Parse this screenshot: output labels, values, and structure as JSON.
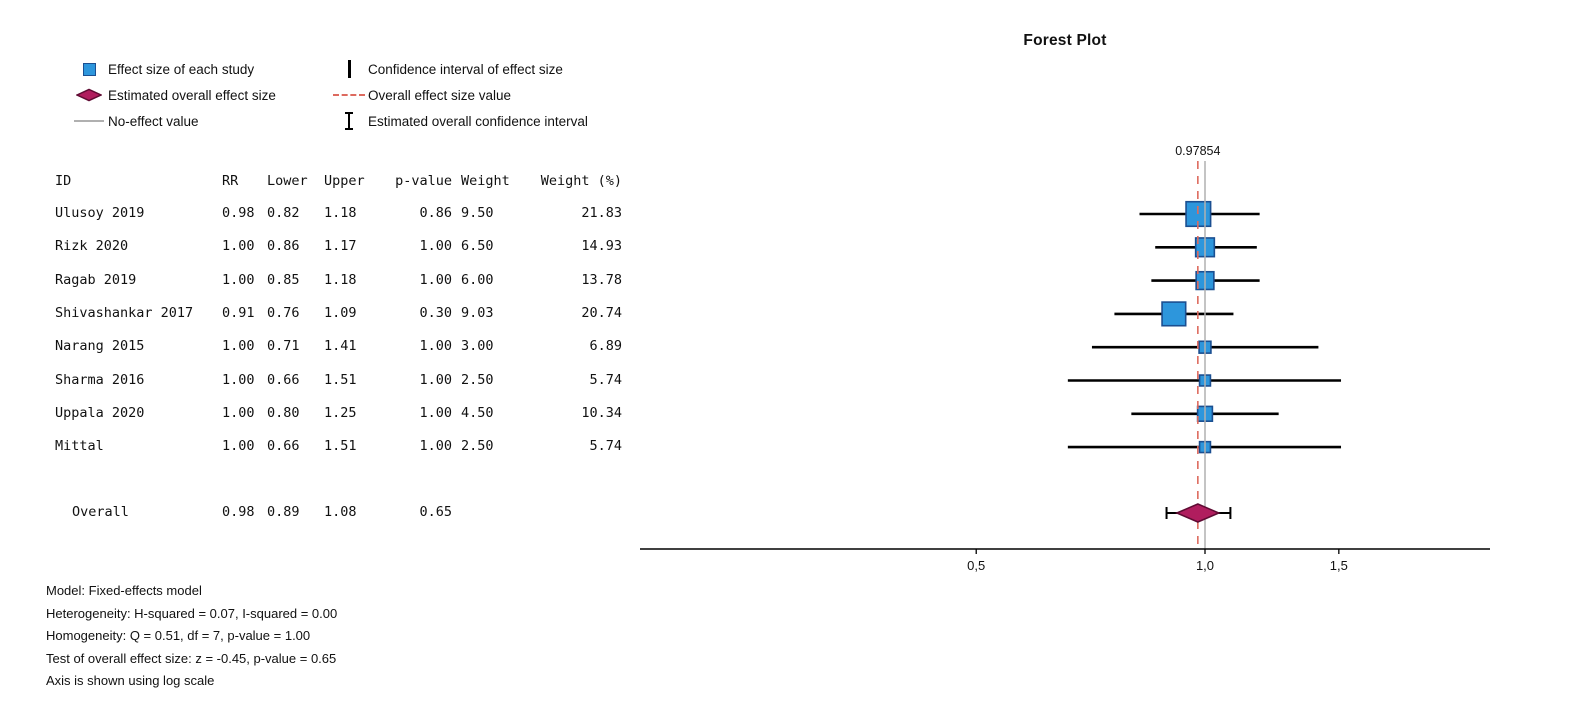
{
  "chart_data": {
    "type": "forest",
    "title": "Forest Plot",
    "x_scale": "log",
    "xlabel": "",
    "no_effect_value": 1.0,
    "ticks": [
      {
        "label": "0,5",
        "value": 0.5
      },
      {
        "label": "1,0",
        "value": 1.0
      },
      {
        "label": "1,5",
        "value": 1.5
      }
    ],
    "studies": [
      {
        "name": "Ulusoy 2019",
        "rr": 0.98,
        "lower": 0.82,
        "upper": 1.18,
        "weight": 9.5,
        "weight_pct": 21.83
      },
      {
        "name": "Rizk 2020",
        "rr": 1.0,
        "lower": 0.86,
        "upper": 1.17,
        "weight": 6.5,
        "weight_pct": 14.93
      },
      {
        "name": "Ragab 2019",
        "rr": 1.0,
        "lower": 0.85,
        "upper": 1.18,
        "weight": 6.0,
        "weight_pct": 13.78
      },
      {
        "name": "Shivashankar 2017",
        "rr": 0.91,
        "lower": 0.76,
        "upper": 1.09,
        "weight": 9.03,
        "weight_pct": 20.74
      },
      {
        "name": "Narang 2015",
        "rr": 1.0,
        "lower": 0.71,
        "upper": 1.41,
        "weight": 3.0,
        "weight_pct": 6.89
      },
      {
        "name": "Sharma 2016",
        "rr": 1.0,
        "lower": 0.66,
        "upper": 1.51,
        "weight": 2.5,
        "weight_pct": 5.74
      },
      {
        "name": "Uppala 2020",
        "rr": 1.0,
        "lower": 0.8,
        "upper": 1.25,
        "weight": 4.5,
        "weight_pct": 10.34
      },
      {
        "name": "Mittal",
        "rr": 1.0,
        "lower": 0.66,
        "upper": 1.51,
        "weight": 2.5,
        "weight_pct": 5.74
      }
    ],
    "overall": {
      "label": "0.97854",
      "value": 0.97854,
      "lower": 0.89,
      "upper": 1.08
    },
    "colors": {
      "square": "#2d96dc",
      "square_border": "#1b4f91",
      "diamond": "#b01d5e",
      "diamond_border": "#5f0b33",
      "overall_line": "#dd6a5f",
      "no_effect_line": "#b0b0b0",
      "ci": "#000000"
    }
  },
  "legend": {
    "items": [
      {
        "label": "Effect size of each study",
        "marker": "square"
      },
      {
        "label": "Estimated overall effect size",
        "marker": "diamond"
      },
      {
        "label": "No-effect value",
        "marker": "gray-line"
      },
      {
        "label": "Confidence interval of effect size",
        "marker": "vertical-line"
      },
      {
        "label": "Overall effect size value",
        "marker": "dashed-line"
      },
      {
        "label": "Estimated overall confidence interval",
        "marker": "i-beam"
      }
    ]
  },
  "table": {
    "headers": [
      "ID",
      "RR",
      "Lower",
      "Upper",
      "p-value",
      "Weight",
      "Weight (%)"
    ],
    "rows": [
      {
        "id": "Ulusoy 2019",
        "rr": "0.98",
        "lower": "0.82",
        "upper": "1.18",
        "p": "0.86",
        "weight": "9.50",
        "weight_pct": "21.83"
      },
      {
        "id": "Rizk 2020",
        "rr": "1.00",
        "lower": "0.86",
        "upper": "1.17",
        "p": "1.00",
        "weight": "6.50",
        "weight_pct": "14.93"
      },
      {
        "id": "Ragab 2019",
        "rr": "1.00",
        "lower": "0.85",
        "upper": "1.18",
        "p": "1.00",
        "weight": "6.00",
        "weight_pct": "13.78"
      },
      {
        "id": "Shivashankar 2017",
        "rr": "0.91",
        "lower": "0.76",
        "upper": "1.09",
        "p": "0.30",
        "weight": "9.03",
        "weight_pct": "20.74"
      },
      {
        "id": "Narang 2015",
        "rr": "1.00",
        "lower": "0.71",
        "upper": "1.41",
        "p": "1.00",
        "weight": "3.00",
        "weight_pct": "6.89"
      },
      {
        "id": "Sharma 2016",
        "rr": "1.00",
        "lower": "0.66",
        "upper": "1.51",
        "p": "1.00",
        "weight": "2.50",
        "weight_pct": "5.74"
      },
      {
        "id": "Uppala 2020",
        "rr": "1.00",
        "lower": "0.80",
        "upper": "1.25",
        "p": "1.00",
        "weight": "4.50",
        "weight_pct": "10.34"
      },
      {
        "id": "Mittal",
        "rr": "1.00",
        "lower": "0.66",
        "upper": "1.51",
        "p": "1.00",
        "weight": "2.50",
        "weight_pct": "5.74"
      }
    ],
    "overall": {
      "id": "Overall",
      "rr": "0.98",
      "lower": "0.89",
      "upper": "1.08",
      "p": "0.65",
      "weight": "",
      "weight_pct": ""
    }
  },
  "footer": {
    "lines": [
      "Model: Fixed-effects model",
      "Heterogeneity: H-squared = 0.07, I-squared = 0.00",
      "Homogeneity: Q = 0.51, df = 7, p-value = 1.00",
      "Test of overall effect size: z = -0.45, p-value = 0.65",
      "Axis is shown using log scale"
    ]
  }
}
